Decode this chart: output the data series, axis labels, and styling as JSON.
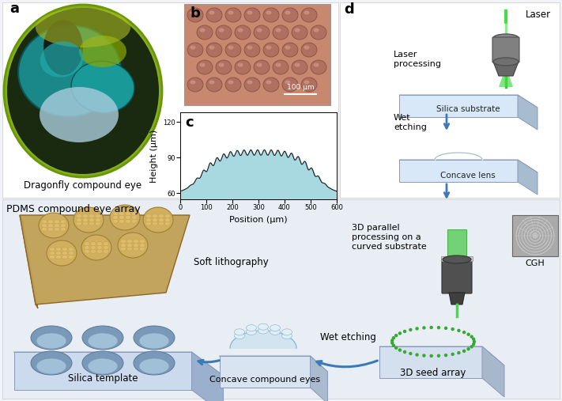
{
  "panel_labels": [
    "a",
    "b",
    "c",
    "d"
  ],
  "panel_a_label": "Dragonfly compound eye",
  "panel_b_scale": "100 μm",
  "panel_c_xlabel": "Position (μm)",
  "panel_c_ylabel": "Height (μm)",
  "panel_c_xlim": [
    0,
    600
  ],
  "panel_c_ylim": [
    55,
    128
  ],
  "panel_c_yticks": [
    60,
    90,
    120
  ],
  "panel_c_xticks": [
    0,
    100,
    200,
    300,
    400,
    500,
    600
  ],
  "panel_c_fill_color": "#a8d8e0",
  "panel_c_line_color": "#1a1a1a",
  "arrow_color": "#3a7ab8",
  "background_color": "#f0f4f8",
  "label_fontsize": 13,
  "tick_fontsize": 7,
  "axis_label_fontsize": 8,
  "box_top_color": "#c8daf0",
  "box_front_color": "#d8e8f8",
  "box_side_color": "#a8bcd0",
  "box_edge_color": "#8899bb",
  "pdms_color": "#c0a060",
  "pdms_edge": "#906030"
}
